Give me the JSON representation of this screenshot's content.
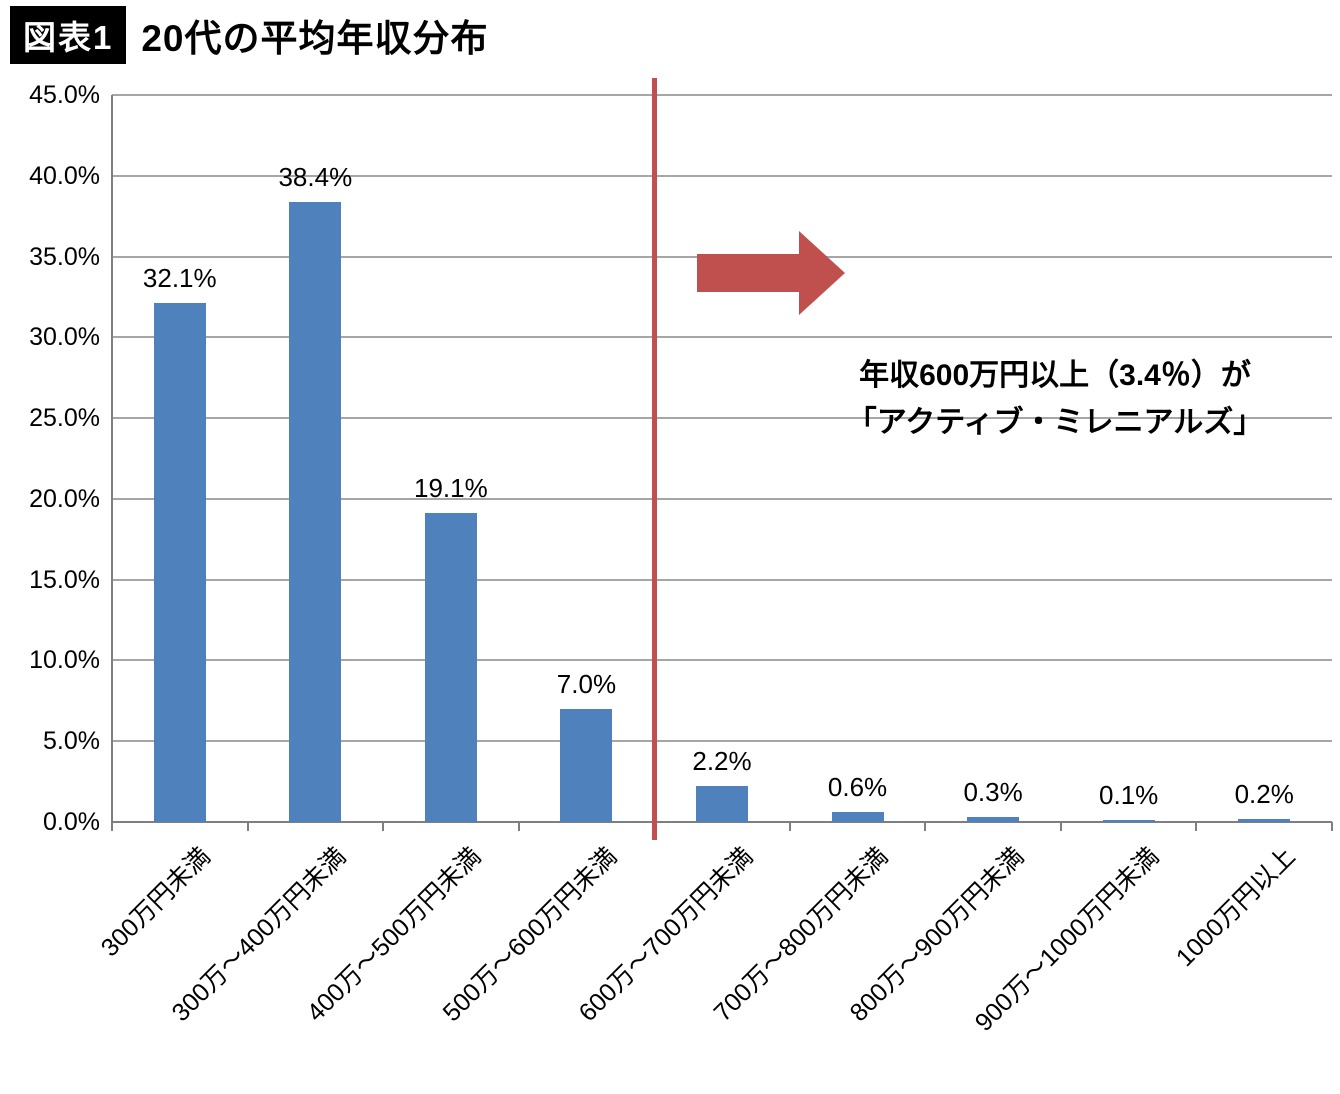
{
  "header": {
    "badge": "図表1",
    "title": "20代の平均年収分布"
  },
  "chart_data": {
    "type": "bar",
    "title": "20代の平均年収分布",
    "categories": [
      "300万円未満",
      "300万～400万円未満",
      "400万～500万円未満",
      "500万～600万円未満",
      "600万～700万円未満",
      "700万～800万円未満",
      "800万～900万円未満",
      "900万～1000万円未満",
      "1000万円以上"
    ],
    "values": [
      32.1,
      38.4,
      19.1,
      7.0,
      2.2,
      0.6,
      0.3,
      0.1,
      0.2
    ],
    "labels": [
      "32.1%",
      "38.4%",
      "19.1%",
      "7.0%",
      "2.2%",
      "0.6%",
      "0.3%",
      "0.1%",
      "0.2%"
    ],
    "xlabel": "",
    "ylabel": "",
    "ylim": [
      0,
      45
    ],
    "ytick_step": 5,
    "yticks": [
      "0.0%",
      "5.0%",
      "10.0%",
      "15.0%",
      "20.0%",
      "25.0%",
      "30.0%",
      "35.0%",
      "40.0%",
      "45.0%"
    ],
    "grid": "horizontal",
    "legend": "none",
    "divider_after_category_index": 3,
    "annotation": {
      "line1": "年収600万円以上（3.4％）が",
      "line2": "「アクティブ・ミレニアルズ」"
    },
    "colors": {
      "bar": "#4f81bd",
      "accent": "#c0504d",
      "gridline": "#a6a6a6",
      "axis": "#7f7f7f",
      "badge_bg": "#000000",
      "badge_text": "#ffffff"
    }
  }
}
